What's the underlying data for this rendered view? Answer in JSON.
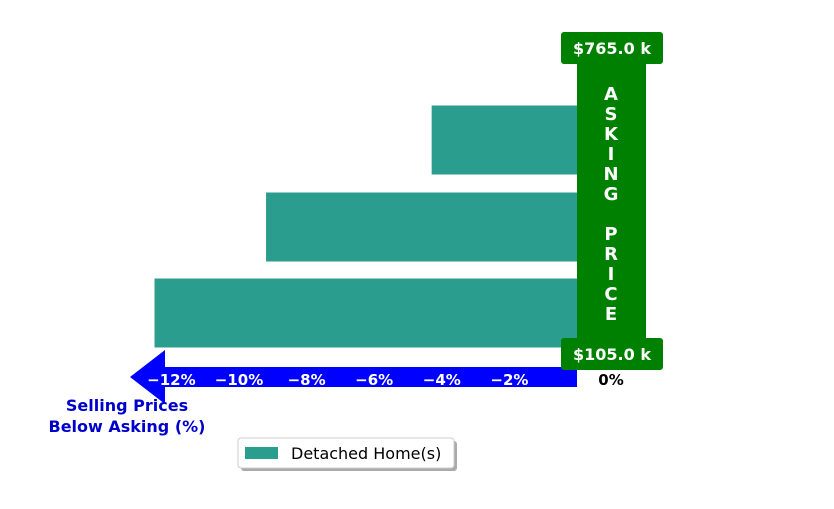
{
  "chart_data": {
    "type": "bar",
    "orientation": "horizontal",
    "series": [
      {
        "name": "Detached Home(s)",
        "color": "#2a9d8f",
        "values": [
          -12.5,
          -9.2,
          -4.3
        ]
      }
    ],
    "xlim": [
      -13.5,
      1.0
    ],
    "x_ticks": [
      {
        "value": -12,
        "label": "−12%"
      },
      {
        "value": -10,
        "label": "−10%"
      },
      {
        "value": -8,
        "label": "−8%"
      },
      {
        "value": -6,
        "label": "−6%"
      },
      {
        "value": -4,
        "label": "−4%"
      },
      {
        "value": -2,
        "label": "−2%"
      },
      {
        "value": 0,
        "label": "0%"
      }
    ],
    "xlabel_line1": "Selling Prices",
    "xlabel_line2": "Below Asking (%)",
    "asking_price_label": "ASKING PRICE",
    "price_top_label": "$765.0 k",
    "price_bottom_label": "$105.0 k",
    "legend_position": "bottom-center",
    "grid": false,
    "colors": {
      "bar": "#2a9d8f",
      "arrow": "#0000ff",
      "asking_price": "#008000",
      "xlabel": "#0000cc"
    }
  }
}
